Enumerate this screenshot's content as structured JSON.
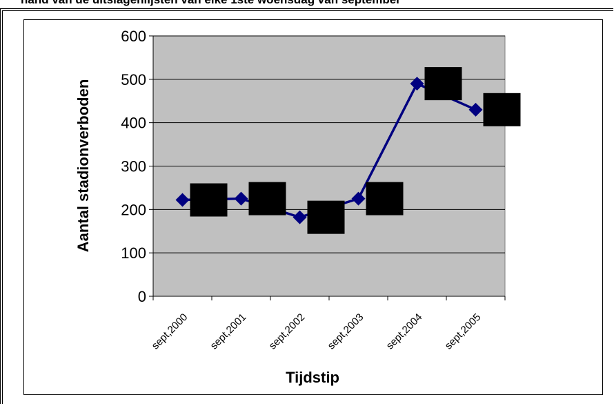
{
  "header": {
    "title_fragment": "hand van de uitslagenlijsten van elke 1ste woensdag van september"
  },
  "chart_data": {
    "type": "line",
    "title": "",
    "xlabel": "Tijdstip",
    "ylabel": "Aantal stadionverboden",
    "categories": [
      "sept,2000",
      "sept,2001",
      "sept,2002",
      "sept,2003",
      "sept,2004",
      "sept,2005"
    ],
    "series": [
      {
        "values": [
          222,
          225,
          182,
          225,
          490,
          430
        ],
        "color": "#000080",
        "marker": "diamond"
      }
    ],
    "ylim": [
      0,
      600
    ],
    "yticks": [
      0,
      100,
      200,
      300,
      400,
      500,
      600
    ],
    "grid": true,
    "plot_background": "#c0c0c0",
    "legend": "none",
    "label_markers": "black squares (obscured data labels)"
  }
}
